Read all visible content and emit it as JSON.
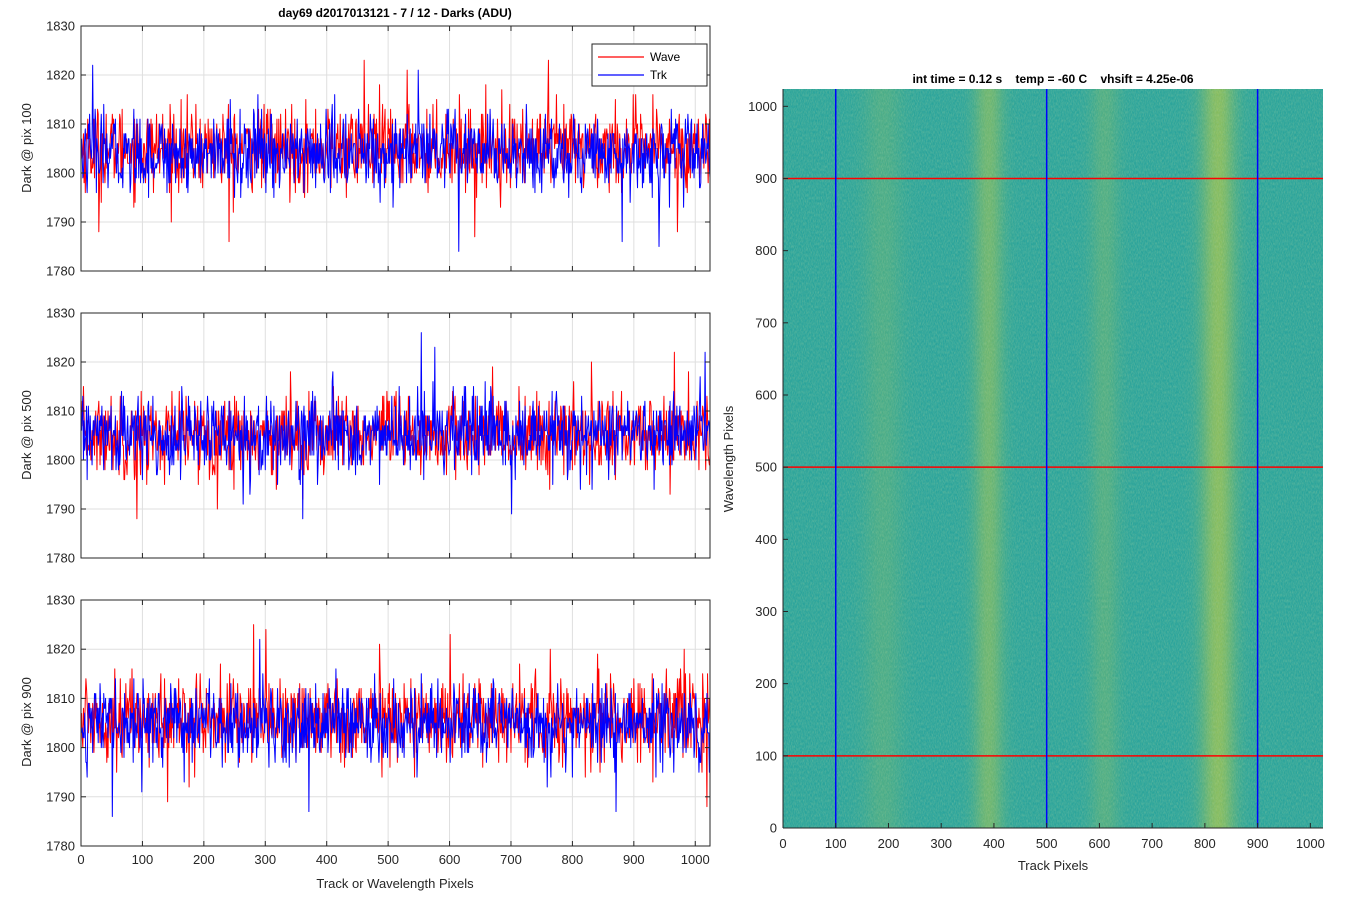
{
  "chart_data": [
    {
      "type": "line",
      "id": "pix100",
      "title": "day69 d2017013121 - 7 / 12 - Darks (ADU)",
      "xlabel": "",
      "ylabel": "Dark @ pix 100",
      "xlim": [
        0,
        1024
      ],
      "ylim": [
        1780,
        1830
      ],
      "xticks": [
        0,
        100,
        200,
        300,
        400,
        500,
        600,
        700,
        800,
        900,
        1000
      ],
      "xtick_labels_shown": false,
      "yticks": [
        1780,
        1790,
        1800,
        1810,
        1820,
        1830
      ],
      "grid": true,
      "legend": {
        "position": "top-right",
        "entries": [
          "Wave",
          "Trk"
        ]
      },
      "series": [
        {
          "name": "Wave",
          "color": "#ff0000",
          "n_points": 1024,
          "mean": 1805,
          "noise_sd": 4.2,
          "min": 1786,
          "max": 1823,
          "spikes": [
            [
              460,
              1823
            ],
            [
              760,
              1823
            ],
            [
              530,
              1821
            ],
            [
              240,
              1786
            ],
            [
              28,
              1788
            ],
            [
              640,
              1787
            ],
            [
              970,
              1788
            ]
          ]
        },
        {
          "name": "Trk",
          "color": "#0000ff",
          "n_points": 1024,
          "mean": 1804,
          "noise_sd": 4.0,
          "min": 1784,
          "max": 1822,
          "spikes": [
            [
              18,
              1822
            ],
            [
              548,
              1821
            ],
            [
              614,
              1784
            ],
            [
              940,
              1785
            ],
            [
              880,
              1786
            ]
          ]
        }
      ]
    },
    {
      "type": "line",
      "id": "pix500",
      "title": "",
      "xlabel": "",
      "ylabel": "Dark @ pix 500",
      "xlim": [
        0,
        1024
      ],
      "ylim": [
        1780,
        1830
      ],
      "xticks": [
        0,
        100,
        200,
        300,
        400,
        500,
        600,
        700,
        800,
        900,
        1000
      ],
      "xtick_labels_shown": false,
      "yticks": [
        1780,
        1790,
        1800,
        1810,
        1820,
        1830
      ],
      "grid": true,
      "series": [
        {
          "name": "Wave",
          "color": "#ff0000",
          "n_points": 1024,
          "mean": 1805,
          "noise_sd": 4.2,
          "min": 1788,
          "max": 1822,
          "spikes": [
            [
              90,
              1788
            ],
            [
              965,
              1822
            ],
            [
              830,
              1820
            ]
          ]
        },
        {
          "name": "Trk",
          "color": "#0000ff",
          "n_points": 1024,
          "mean": 1805,
          "noise_sd": 4.0,
          "min": 1788,
          "max": 1826,
          "spikes": [
            [
              553,
              1826
            ],
            [
              575,
              1823
            ],
            [
              1015,
              1822
            ],
            [
              700,
              1789
            ],
            [
              360,
              1788
            ]
          ]
        }
      ]
    },
    {
      "type": "line",
      "id": "pix900",
      "title": "",
      "xlabel": "Track or Wavelength Pixels",
      "ylabel": "Dark @ pix 900",
      "xlim": [
        0,
        1024
      ],
      "ylim": [
        1780,
        1830
      ],
      "xticks": [
        0,
        100,
        200,
        300,
        400,
        500,
        600,
        700,
        800,
        900,
        1000
      ],
      "xtick_labels_shown": true,
      "yticks": [
        1780,
        1790,
        1800,
        1810,
        1820,
        1830
      ],
      "grid": true,
      "series": [
        {
          "name": "Wave",
          "color": "#ff0000",
          "n_points": 1024,
          "mean": 1806,
          "noise_sd": 4.3,
          "min": 1788,
          "max": 1825,
          "spikes": [
            [
              280,
              1825
            ],
            [
              300,
              1824
            ],
            [
              600,
              1823
            ],
            [
              1018,
              1788
            ],
            [
              140,
              1789
            ]
          ]
        },
        {
          "name": "Trk",
          "color": "#0000ff",
          "n_points": 1024,
          "mean": 1805,
          "noise_sd": 4.0,
          "min": 1786,
          "max": 1822,
          "spikes": [
            [
              290,
              1822
            ],
            [
              50,
              1786
            ],
            [
              370,
              1787
            ],
            [
              870,
              1787
            ]
          ]
        }
      ]
    },
    {
      "type": "heatmap",
      "id": "frame",
      "title": "int time = 0.12 s    temp = -60 C    vhsift = 4.25e-06",
      "xlabel": "Track Pixels",
      "ylabel": "Wavelength Pixels",
      "xlim": [
        0,
        1024
      ],
      "ylim": [
        0,
        1024
      ],
      "xticks": [
        0,
        100,
        200,
        300,
        400,
        500,
        600,
        700,
        800,
        900,
        1000
      ],
      "yticks": [
        0,
        100,
        200,
        300,
        400,
        500,
        600,
        700,
        800,
        900,
        1000
      ],
      "colormap": "parula",
      "base_color": "#2aa39a",
      "bright_color": "#a6c44a",
      "bright_bands": [
        [
          150,
          230,
          0.25
        ],
        [
          360,
          420,
          0.55
        ],
        [
          580,
          640,
          0.3
        ],
        [
          790,
          860,
          0.75
        ]
      ],
      "vertical_markers": {
        "color": "#0000ff",
        "x": [
          100,
          500,
          900
        ]
      },
      "horizontal_markers": {
        "color": "#ff0000",
        "y": [
          100,
          500,
          900
        ]
      }
    }
  ]
}
